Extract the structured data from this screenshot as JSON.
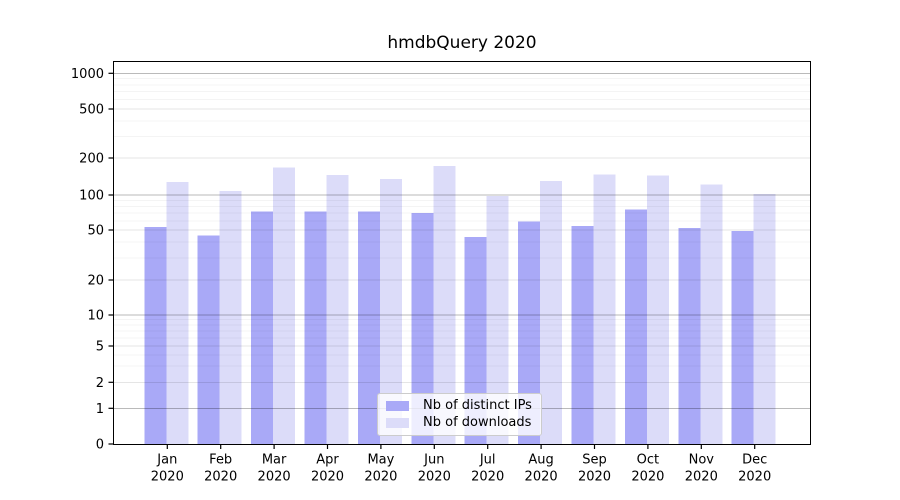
{
  "title": "hmdbQuery 2020",
  "chart_data": {
    "type": "bar",
    "title": "hmdbQuery 2020",
    "categories": [
      "Jan 2020",
      "Feb 2020",
      "Mar 2020",
      "Apr 2020",
      "May 2020",
      "Jun 2020",
      "Jul 2020",
      "Aug 2020",
      "Sep 2020",
      "Oct 2020",
      "Nov 2020",
      "Dec 2020"
    ],
    "series": [
      {
        "name": "Nb of distinct IPs",
        "color": "#a9a9f7",
        "values": [
          53,
          45,
          72,
          72,
          72,
          70,
          44,
          59,
          54,
          75,
          52,
          49
        ]
      },
      {
        "name": "Nb of downloads",
        "color": "#dcdcf9",
        "values": [
          128,
          108,
          168,
          146,
          135,
          172,
          98,
          130,
          147,
          144,
          122,
          102
        ]
      }
    ],
    "yticks": [
      0,
      1,
      2,
      5,
      10,
      20,
      50,
      100,
      200,
      500,
      1000
    ],
    "ytick_labels": [
      "0",
      "1",
      "2",
      "5",
      "10",
      "20",
      "50",
      "100",
      "200",
      "500",
      "1000"
    ],
    "xlabel": "",
    "ylabel": "",
    "yscale": "log-like",
    "ylim": [
      0,
      1260
    ],
    "grid": true,
    "legend_position": "lower center inside plot"
  },
  "colors": {
    "background": "#ffffff",
    "bar_distinct_ips": "#a9a9f7",
    "bar_downloads": "#dcdcf9",
    "axis_frame": "#000000",
    "grid_decade": "rgba(0,0,0,0.27)",
    "grid_tick": "rgba(0,0,0,0.10)",
    "grid_minor": "rgba(0,0,0,0.045)",
    "text": "#000000"
  }
}
